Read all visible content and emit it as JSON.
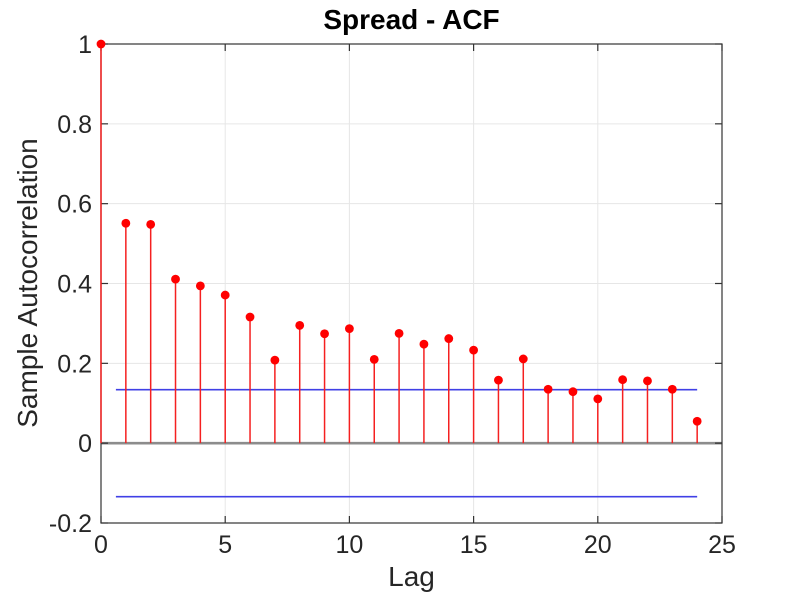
{
  "chart_data": {
    "type": "stem",
    "title": "Spread - ACF",
    "xlabel": "Lag",
    "ylabel": "Sample Autocorrelation",
    "x": [
      0,
      1,
      2,
      3,
      4,
      5,
      6,
      7,
      8,
      9,
      10,
      11,
      12,
      13,
      14,
      15,
      16,
      17,
      18,
      19,
      20,
      21,
      22,
      23,
      24
    ],
    "values": [
      1.0,
      0.551,
      0.548,
      0.411,
      0.394,
      0.371,
      0.316,
      0.208,
      0.295,
      0.274,
      0.287,
      0.21,
      0.275,
      0.248,
      0.262,
      0.233,
      0.158,
      0.211,
      0.135,
      0.129,
      0.111,
      0.159,
      0.156,
      0.135,
      0.055
    ],
    "confidence_bounds": {
      "upper": 0.134,
      "lower": -0.134,
      "x_start": 0.6,
      "x_end": 24
    },
    "xlim": [
      0,
      25
    ],
    "ylim": [
      -0.2,
      1
    ],
    "xticks": [
      0,
      5,
      10,
      15,
      20,
      25
    ],
    "yticks": [
      -0.2,
      0,
      0.2,
      0.4,
      0.6,
      0.8,
      1
    ],
    "grid": true,
    "legend": null,
    "colors": {
      "stem": "#f52020",
      "marker": "#ff0000",
      "zero_line": "#8c8c8c",
      "grid": "#e6e6e6",
      "axis_box": "#333333",
      "confidence_line": "#4040e6",
      "tick_label": "#262626",
      "background": "#ffffff"
    }
  }
}
